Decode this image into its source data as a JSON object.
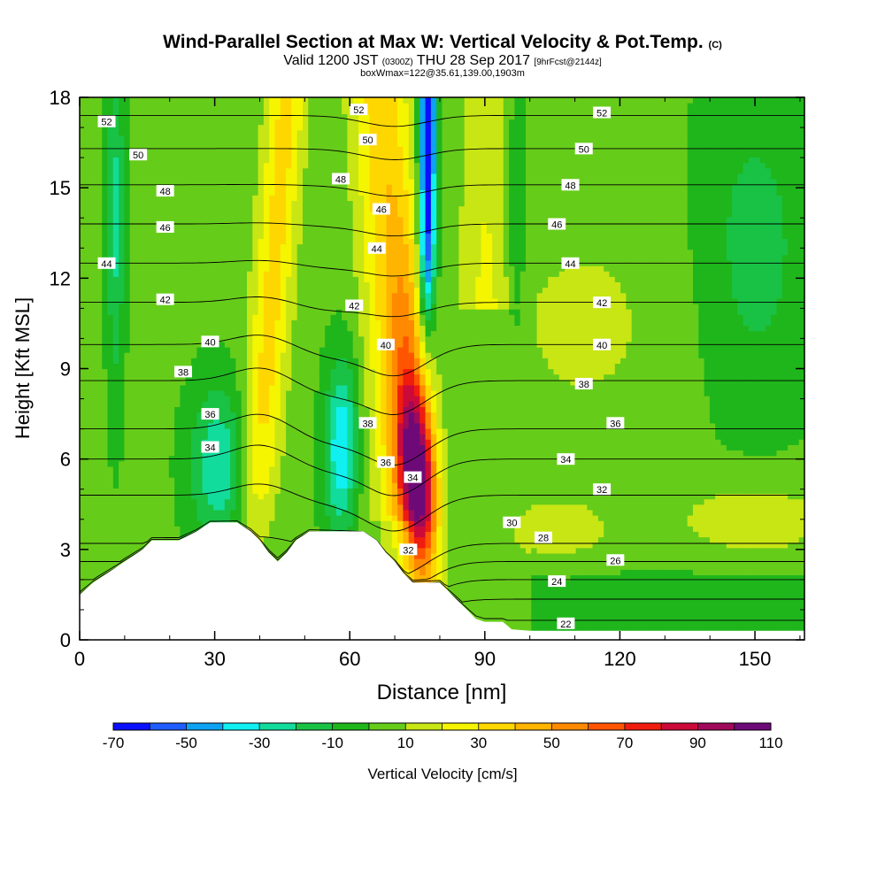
{
  "chart_data": {
    "type": "heatmap",
    "title": "Wind-Parallel Section at Max W: Vertical Velocity & Pot.Temp.",
    "title_mark": "(C)",
    "subtitle_valid": "Valid 1200 JST",
    "subtitle_utc": "(0300Z)",
    "subtitle_date": "THU 28 Sep 2017",
    "subtitle_fcst": "[9hrFcst@2144z]",
    "box_info": "boxWmax=122@35.61,139.00,1903m",
    "xlabel": "Distance [nm]",
    "ylabel": "Height [Kft MSL]",
    "xlim": [
      0,
      161
    ],
    "ylim": [
      0,
      18
    ],
    "x_ticks": [
      "0",
      "30",
      "60",
      "90",
      "120",
      "150"
    ],
    "y_ticks": [
      "0",
      "3",
      "6",
      "9",
      "12",
      "15",
      "18"
    ],
    "colorbar": {
      "label": "Vertical Velocity [cm/s]",
      "bounds": [
        -70,
        -60,
        -50,
        -40,
        -30,
        -20,
        -10,
        0,
        10,
        20,
        30,
        40,
        50,
        60,
        70,
        80,
        90,
        100,
        110
      ],
      "tick_labels": [
        "-70",
        "-50",
        "-30",
        "-10",
        "10",
        "30",
        "50",
        "70",
        "90",
        "110"
      ],
      "colors": [
        "#0a0fff",
        "#1f5dff",
        "#0da2f2",
        "#10f0f0",
        "#12dc9b",
        "#19c245",
        "#1fb61c",
        "#66cc1a",
        "#c8e614",
        "#f5f500",
        "#ffd700",
        "#ffb400",
        "#ff8a00",
        "#ff5500",
        "#f01c0e",
        "#cc0a3a",
        "#a00a5a",
        "#6e0a78"
      ]
    },
    "velocity_features": [
      {
        "type": "updraft",
        "x": [
          66,
          78
        ],
        "z": [
          3,
          18
        ],
        "peak_w": 110
      },
      {
        "type": "downdraft",
        "x": [
          76,
          80
        ],
        "z": [
          9,
          18
        ],
        "peak_w": -70
      },
      {
        "type": "updraft",
        "x": [
          40,
          52
        ],
        "z": [
          3,
          18
        ],
        "peak_w": 30
      },
      {
        "type": "downdraft",
        "x": [
          54,
          62
        ],
        "z": [
          4,
          10
        ],
        "peak_w": -40
      },
      {
        "type": "downdraft",
        "x": [
          28,
          40
        ],
        "z": [
          4,
          10
        ],
        "peak_w": -30
      },
      {
        "type": "updraft",
        "x": [
          86,
          100
        ],
        "z": [
          12,
          18
        ],
        "peak_w": 20
      },
      {
        "type": "updraft",
        "x": [
          95,
          115
        ],
        "z": [
          2.5,
          4.5
        ],
        "peak_w": 10
      },
      {
        "type": "updraft",
        "x": [
          135,
          161
        ],
        "z": [
          3,
          5
        ],
        "peak_w": 15
      }
    ],
    "isentropes": [
      {
        "theta": "22",
        "h0": 0.65,
        "label": [
          108,
          0.55
        ]
      },
      {
        "theta": "24",
        "h0": 1.35,
        "label": [
          106,
          1.95
        ]
      },
      {
        "theta": "26",
        "h0": 2.0,
        "label": [
          119,
          2.65
        ]
      },
      {
        "theta": "28",
        "h0": 2.6,
        "label": [
          103,
          3.4
        ]
      },
      {
        "theta": "30",
        "h0": 3.2,
        "label": [
          96,
          3.9
        ]
      },
      {
        "theta": "32",
        "h0": 4.8,
        "label": [
          116,
          5.0
        ]
      },
      {
        "theta": "34",
        "h0": 6.0,
        "label": [
          108,
          6.0
        ]
      },
      {
        "theta": "36",
        "h0": 7.0,
        "label": [
          119,
          7.2
        ]
      },
      {
        "theta": "38",
        "h0": 8.6,
        "label": [
          112,
          8.5
        ]
      },
      {
        "theta": "40",
        "h0": 9.8,
        "label": [
          116,
          9.8
        ]
      },
      {
        "theta": "42",
        "h0": 11.2,
        "label": [
          116,
          11.2
        ]
      },
      {
        "theta": "44",
        "h0": 12.5,
        "label": [
          109,
          12.5
        ]
      },
      {
        "theta": "46",
        "h0": 13.8,
        "label": [
          106,
          13.8
        ]
      },
      {
        "theta": "48",
        "h0": 15.1,
        "label": [
          109,
          15.1
        ]
      },
      {
        "theta": "50",
        "h0": 16.3,
        "label": [
          112,
          16.3
        ]
      },
      {
        "theta": "52",
        "h0": 17.4,
        "label": [
          116,
          17.5
        ]
      }
    ],
    "extra_labels": [
      {
        "text": "52",
        "x": 6,
        "z": 17.2
      },
      {
        "text": "50",
        "x": 13,
        "z": 16.1
      },
      {
        "text": "48",
        "x": 19,
        "z": 14.9
      },
      {
        "text": "46",
        "x": 19,
        "z": 13.7
      },
      {
        "text": "44",
        "x": 6,
        "z": 12.5
      },
      {
        "text": "42",
        "x": 19,
        "z": 11.3
      },
      {
        "text": "40",
        "x": 29,
        "z": 9.9
      },
      {
        "text": "38",
        "x": 23,
        "z": 8.9
      },
      {
        "text": "36",
        "x": 29,
        "z": 7.5
      },
      {
        "text": "34",
        "x": 29,
        "z": 6.4
      },
      {
        "text": "52",
        "x": 62,
        "z": 17.6
      },
      {
        "text": "50",
        "x": 64,
        "z": 16.6
      },
      {
        "text": "48",
        "x": 58,
        "z": 15.3
      },
      {
        "text": "46",
        "x": 67,
        "z": 14.3
      },
      {
        "text": "44",
        "x": 66,
        "z": 13.0
      },
      {
        "text": "42",
        "x": 61,
        "z": 11.1
      },
      {
        "text": "40",
        "x": 68,
        "z": 9.8
      },
      {
        "text": "38",
        "x": 64,
        "z": 7.2
      },
      {
        "text": "36",
        "x": 68,
        "z": 5.9
      },
      {
        "text": "34",
        "x": 74,
        "z": 5.4
      },
      {
        "text": "32",
        "x": 73,
        "z": 3.0
      }
    ],
    "terrain_profile": [
      [
        0,
        1.5
      ],
      [
        3,
        1.9
      ],
      [
        6,
        2.2
      ],
      [
        9,
        2.5
      ],
      [
        12,
        2.8
      ],
      [
        14,
        3.0
      ],
      [
        16,
        3.3
      ],
      [
        22,
        3.3
      ],
      [
        26,
        3.6
      ],
      [
        29,
        3.9
      ],
      [
        35,
        3.9
      ],
      [
        38,
        3.6
      ],
      [
        40,
        3.3
      ],
      [
        42,
        2.9
      ],
      [
        44,
        2.6
      ],
      [
        46,
        2.9
      ],
      [
        48,
        3.3
      ],
      [
        51,
        3.6
      ],
      [
        63,
        3.6
      ],
      [
        66,
        3.3
      ],
      [
        68,
        2.9
      ],
      [
        70,
        2.6
      ],
      [
        72,
        2.2
      ],
      [
        74,
        1.9
      ],
      [
        76,
        1.9
      ],
      [
        78,
        1.9
      ],
      [
        80,
        1.9
      ],
      [
        82,
        1.6
      ],
      [
        84,
        1.3
      ],
      [
        86,
        1.0
      ],
      [
        88,
        0.7
      ],
      [
        90,
        0.6
      ],
      [
        94,
        0.6
      ],
      [
        96,
        0.35
      ],
      [
        100,
        0.3
      ],
      [
        110,
        0.3
      ],
      [
        161,
        0.3
      ]
    ]
  }
}
